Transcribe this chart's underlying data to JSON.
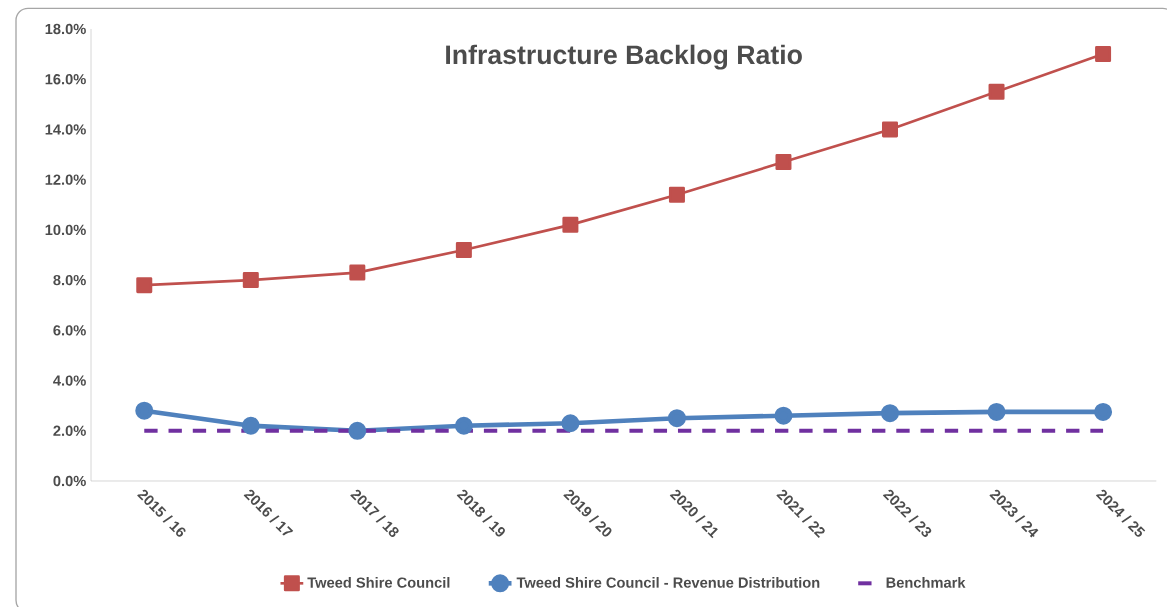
{
  "chart_data": {
    "type": "line",
    "title": "Infrastructure Backlog Ratio",
    "categories": [
      "2015 / 16",
      "2016 / 17",
      "2017 / 18",
      "2018 / 19",
      "2019 / 20",
      "2020 / 21",
      "2021 / 22",
      "2022 / 23",
      "2023 / 24",
      "2024 / 25"
    ],
    "series": [
      {
        "name": "Tweed Shire Council",
        "color": "#c0504d",
        "marker": "square",
        "line_style": "solid",
        "values": [
          7.8,
          8.0,
          8.3,
          9.2,
          10.2,
          11.4,
          12.7,
          14.0,
          15.5,
          17.0
        ]
      },
      {
        "name": "Tweed Shire Council - Revenue Distribution",
        "color": "#4f81bd",
        "marker": "circle",
        "line_style": "solid",
        "values": [
          2.8,
          2.2,
          2.0,
          2.2,
          2.3,
          2.5,
          2.6,
          2.7,
          2.75,
          2.75
        ]
      },
      {
        "name": "Benchmark",
        "color": "#7030a0",
        "marker": "none",
        "line_style": "dashed",
        "values": [
          2.0,
          2.0,
          2.0,
          2.0,
          2.0,
          2.0,
          2.0,
          2.0,
          2.0,
          2.0
        ]
      }
    ],
    "ylim": [
      0,
      18
    ],
    "yticks": [
      {
        "value": 0,
        "label": "0.0%"
      },
      {
        "value": 2,
        "label": "2.0%"
      },
      {
        "value": 4,
        "label": "4.0%"
      },
      {
        "value": 6,
        "label": "6.0%"
      },
      {
        "value": 8,
        "label": "8.0%"
      },
      {
        "value": 10,
        "label": "10.0%"
      },
      {
        "value": 12,
        "label": "12.0%"
      },
      {
        "value": 14,
        "label": "14.0%"
      },
      {
        "value": 16,
        "label": "16.0%"
      },
      {
        "value": 18,
        "label": "18.0%"
      }
    ],
    "grid": false,
    "legend": "bottom"
  }
}
